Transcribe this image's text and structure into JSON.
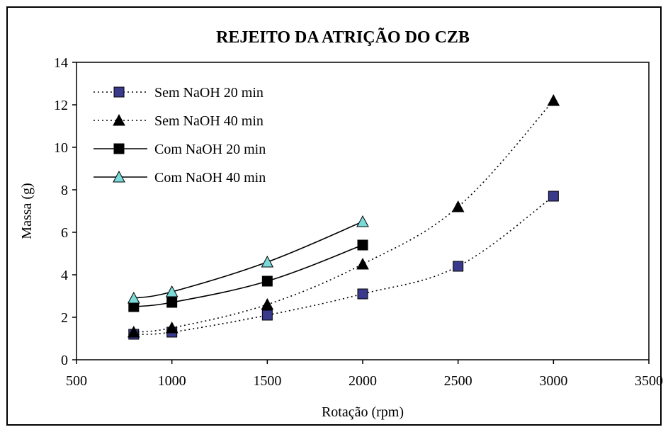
{
  "chart_data": {
    "type": "line",
    "title": "REJEITO DA ATRIÇÃO DO CZB",
    "xlabel": "Rotação (rpm)",
    "ylabel": "Massa (g)",
    "xlim": [
      500,
      3500
    ],
    "ylim": [
      0,
      14
    ],
    "xticks": [
      500,
      1000,
      1500,
      2000,
      2500,
      3000,
      3500
    ],
    "yticks": [
      0,
      2,
      4,
      6,
      8,
      10,
      12,
      14
    ],
    "grid": false,
    "legend_position": "top-left",
    "series": [
      {
        "name": "Sem NaOH 20 min",
        "line": "dotted",
        "marker": "square",
        "marker_color": "#3a3a8c",
        "x": [
          800,
          1000,
          1500,
          2000,
          2500,
          3000
        ],
        "values": [
          1.2,
          1.3,
          2.1,
          3.1,
          4.4,
          7.7
        ]
      },
      {
        "name": "Sem NaOH 40 min",
        "line": "dotted",
        "marker": "triangle",
        "marker_color": "#000000",
        "x": [
          800,
          1000,
          1500,
          2000,
          2500,
          3000
        ],
        "values": [
          1.3,
          1.5,
          2.6,
          4.5,
          7.2,
          12.2
        ]
      },
      {
        "name": "Com NaOH 20 min",
        "line": "solid",
        "marker": "square",
        "marker_color": "#000000",
        "x": [
          800,
          1000,
          1500,
          2000
        ],
        "values": [
          2.5,
          2.7,
          3.7,
          5.4
        ]
      },
      {
        "name": "Com NaOH 40 min",
        "line": "solid",
        "marker": "triangle",
        "marker_color": "#7ad9d9",
        "x": [
          800,
          1000,
          1500,
          2000
        ],
        "values": [
          2.9,
          3.2,
          4.6,
          6.5
        ]
      }
    ]
  }
}
